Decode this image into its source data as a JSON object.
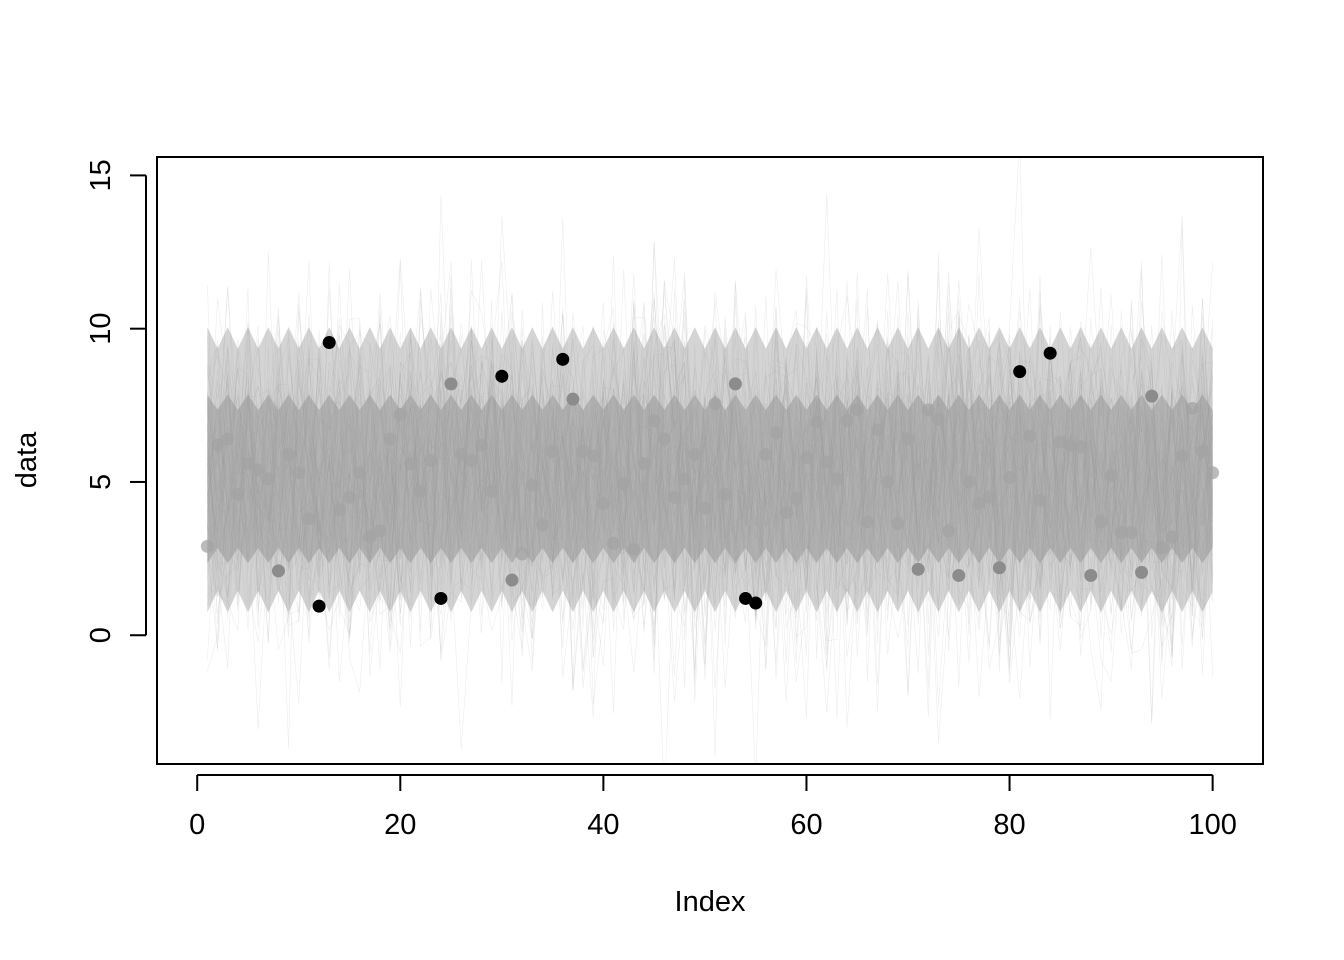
{
  "chart_data": {
    "type": "scatter",
    "title": "",
    "xlabel": "Index",
    "ylabel": "data",
    "xlim": [
      -3.96,
      104.96
    ],
    "ylim": [
      -4.2,
      15.6
    ],
    "x_ticks": [
      0,
      20,
      40,
      60,
      80,
      100
    ],
    "x_tick_labels": [
      "0",
      "20",
      "40",
      "60",
      "80",
      "100"
    ],
    "y_ticks": [
      0,
      5,
      10,
      15
    ],
    "y_tick_labels": [
      "0",
      "5",
      "10",
      "15"
    ],
    "grid": false,
    "legend": "none",
    "band": {
      "description_type": "posterior simulation lines",
      "color": "#b3b3b3",
      "core_low": 2.6,
      "core_high": 7.6,
      "outer_low": 0.5,
      "outer_high": 10.3
    },
    "x": [
      1,
      2,
      3,
      4,
      5,
      6,
      7,
      8,
      9,
      10,
      11,
      12,
      13,
      14,
      15,
      16,
      17,
      18,
      19,
      20,
      21,
      22,
      23,
      24,
      25,
      26,
      27,
      28,
      29,
      30,
      31,
      32,
      33,
      34,
      35,
      36,
      37,
      38,
      39,
      40,
      41,
      42,
      43,
      44,
      45,
      46,
      47,
      48,
      49,
      50,
      51,
      52,
      53,
      54,
      55,
      56,
      57,
      58,
      59,
      60,
      61,
      62,
      63,
      64,
      65,
      66,
      67,
      68,
      69,
      70,
      71,
      72,
      73,
      74,
      75,
      76,
      77,
      78,
      79,
      80,
      81,
      82,
      83,
      84,
      85,
      86,
      87,
      88,
      89,
      90,
      91,
      92,
      93,
      94,
      95,
      96,
      97,
      98,
      99,
      100
    ],
    "y": [
      2.9,
      6.2,
      6.4,
      4.6,
      5.6,
      5.4,
      5.1,
      2.1,
      5.9,
      5.3,
      3.8,
      0.95,
      9.55,
      4.1,
      4.5,
      5.3,
      3.2,
      3.4,
      6.4,
      7.2,
      5.6,
      4.7,
      5.7,
      1.2,
      8.2,
      5.9,
      5.7,
      6.2,
      4.7,
      8.45,
      1.8,
      2.65,
      4.9,
      3.6,
      6.0,
      9.0,
      7.7,
      6.0,
      5.85,
      4.3,
      3.0,
      4.95,
      2.8,
      5.6,
      7.0,
      6.4,
      4.5,
      5.1,
      5.9,
      4.15,
      7.55,
      4.6,
      8.2,
      1.2,
      1.05,
      5.9,
      6.6,
      4.0,
      4.45,
      5.8,
      6.95,
      5.65,
      5.1,
      7.0,
      7.35,
      3.7,
      6.7,
      5.0,
      3.65,
      6.4,
      2.15,
      7.35,
      7.05,
      3.4,
      1.95,
      5.0,
      4.3,
      4.5,
      2.2,
      5.15,
      8.6,
      6.5,
      4.4,
      9.2,
      6.3,
      6.2,
      6.15,
      1.95,
      3.7,
      5.2,
      3.35,
      3.35,
      2.05,
      7.8,
      2.85,
      3.2,
      5.85,
      7.4,
      6.0,
      5.3
    ],
    "point_opacity_note": "points inside the band appear gray; those outside appear black"
  }
}
